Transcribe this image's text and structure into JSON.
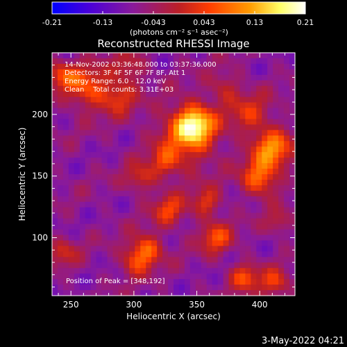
{
  "colorbar": {
    "tick_labels": [
      "-0.21",
      "-0.13",
      "-0.043",
      "0.043",
      "0.13",
      "0.21"
    ],
    "units": "(photons cm⁻² s⁻¹ asec⁻²)"
  },
  "title": "Reconstructed RHESSI Image",
  "annotations": [
    "14-Nov-2002 03:36:48.000 to 03:37:36.000",
    "Detectors: 3F 4F 5F 6F 7F 8F, Att 1",
    "Energy Range: 6.0 - 12.0 keV",
    "Clean    Total counts: 3.31E+03"
  ],
  "peak_label": "Position of Peak = [348,192]",
  "footer_date": "3-May-2022 04:21",
  "colors": {
    "background": "#000000",
    "colormap": [
      "#0000ff",
      "#4b00d8",
      "#8a1a9a",
      "#bb1f26",
      "#ff3d00",
      "#ff9b00",
      "#ffff66",
      "#ffffff"
    ]
  },
  "chart_data": {
    "type": "heatmap",
    "title": "Reconstructed RHESSI Image",
    "xlabel": "Heliocentric X (arcsec)",
    "ylabel": "Heliocentric Y (arcsec)",
    "xlim": [
      235,
      428
    ],
    "ylim": [
      53,
      250
    ],
    "x_ticks": [
      250,
      300,
      350,
      400
    ],
    "y_ticks": [
      100,
      150,
      200
    ],
    "zlim": [
      -0.21,
      0.21
    ],
    "grid": false,
    "peak": {
      "x": 348,
      "y": 192
    },
    "sources": [
      {
        "x": 348,
        "y": 192,
        "amp": 0.21,
        "sigma": 11
      },
      {
        "x": 340,
        "y": 178,
        "amp": 0.1,
        "sigma": 18
      },
      {
        "x": 410,
        "y": 172,
        "amp": 0.17,
        "sigma": 11
      },
      {
        "x": 400,
        "y": 148,
        "amp": 0.15,
        "sigma": 10
      },
      {
        "x": 392,
        "y": 200,
        "amp": 0.09,
        "sigma": 12
      },
      {
        "x": 262,
        "y": 222,
        "amp": 0.13,
        "sigma": 12
      },
      {
        "x": 287,
        "y": 214,
        "amp": 0.1,
        "sigma": 10
      },
      {
        "x": 296,
        "y": 238,
        "amp": 0.08,
        "sigma": 9
      },
      {
        "x": 310,
        "y": 90,
        "amp": 0.14,
        "sigma": 9
      },
      {
        "x": 300,
        "y": 80,
        "amp": 0.09,
        "sigma": 8
      },
      {
        "x": 328,
        "y": 122,
        "amp": 0.11,
        "sigma": 9
      },
      {
        "x": 365,
        "y": 100,
        "amp": 0.12,
        "sigma": 9
      },
      {
        "x": 358,
        "y": 128,
        "amp": 0.1,
        "sigma": 8
      },
      {
        "x": 388,
        "y": 68,
        "amp": 0.12,
        "sigma": 8
      },
      {
        "x": 412,
        "y": 63,
        "amp": 0.11,
        "sigma": 8
      },
      {
        "x": 305,
        "y": 148,
        "amp": 0.09,
        "sigma": 8
      },
      {
        "x": 325,
        "y": 160,
        "amp": 0.08,
        "sigma": 8
      },
      {
        "x": 242,
        "y": 232,
        "amp": 0.1,
        "sigma": 8
      },
      {
        "x": 244,
        "y": 88,
        "amp": 0.08,
        "sigma": 8
      },
      {
        "x": 372,
        "y": 222,
        "amp": 0.07,
        "sigma": 9
      },
      {
        "x": 415,
        "y": 112,
        "amp": 0.07,
        "sigma": 7
      }
    ]
  }
}
